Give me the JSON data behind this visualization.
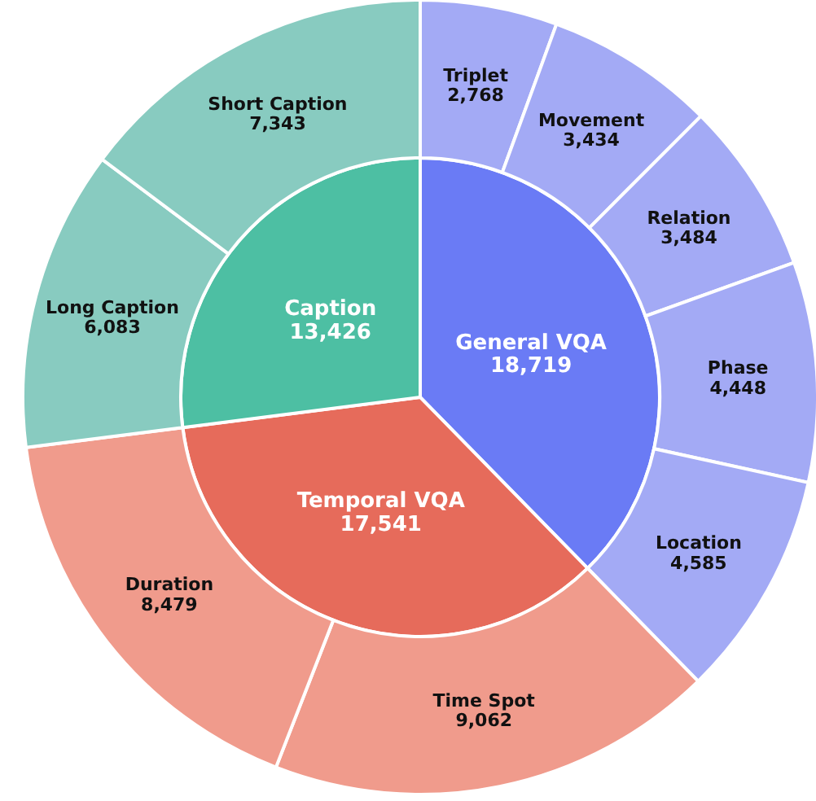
{
  "chart_data": [
    {
      "type": "pie",
      "categories": [
        "General VQA",
        "Temporal VQA",
        "Caption"
      ],
      "values": [
        18719,
        17541,
        13426
      ],
      "value_labels": [
        "18,719",
        "17,541",
        "13,426"
      ],
      "colors": [
        "#6a7bf5",
        "#e66b5b",
        "#4dbfa3"
      ]
    },
    {
      "type": "donut",
      "categories": [
        "Triplet",
        "Movement",
        "Relation",
        "Phase",
        "Location",
        "Time Spot",
        "Duration",
        "Long Caption",
        "Short Caption"
      ],
      "values": [
        2768,
        3434,
        3484,
        4448,
        4585,
        9062,
        8479,
        6083,
        7343
      ],
      "value_labels": [
        "2,768",
        "3,434",
        "3,484",
        "4,448",
        "4,585",
        "9,062",
        "8,479",
        "6,083",
        "7,343"
      ],
      "colors": [
        "#a3aaf5",
        "#a3aaf5",
        "#a3aaf5",
        "#a3aaf5",
        "#a3aaf5",
        "#f09b8c",
        "#f09b8c",
        "#88cbc0",
        "#88cbc0"
      ]
    }
  ]
}
